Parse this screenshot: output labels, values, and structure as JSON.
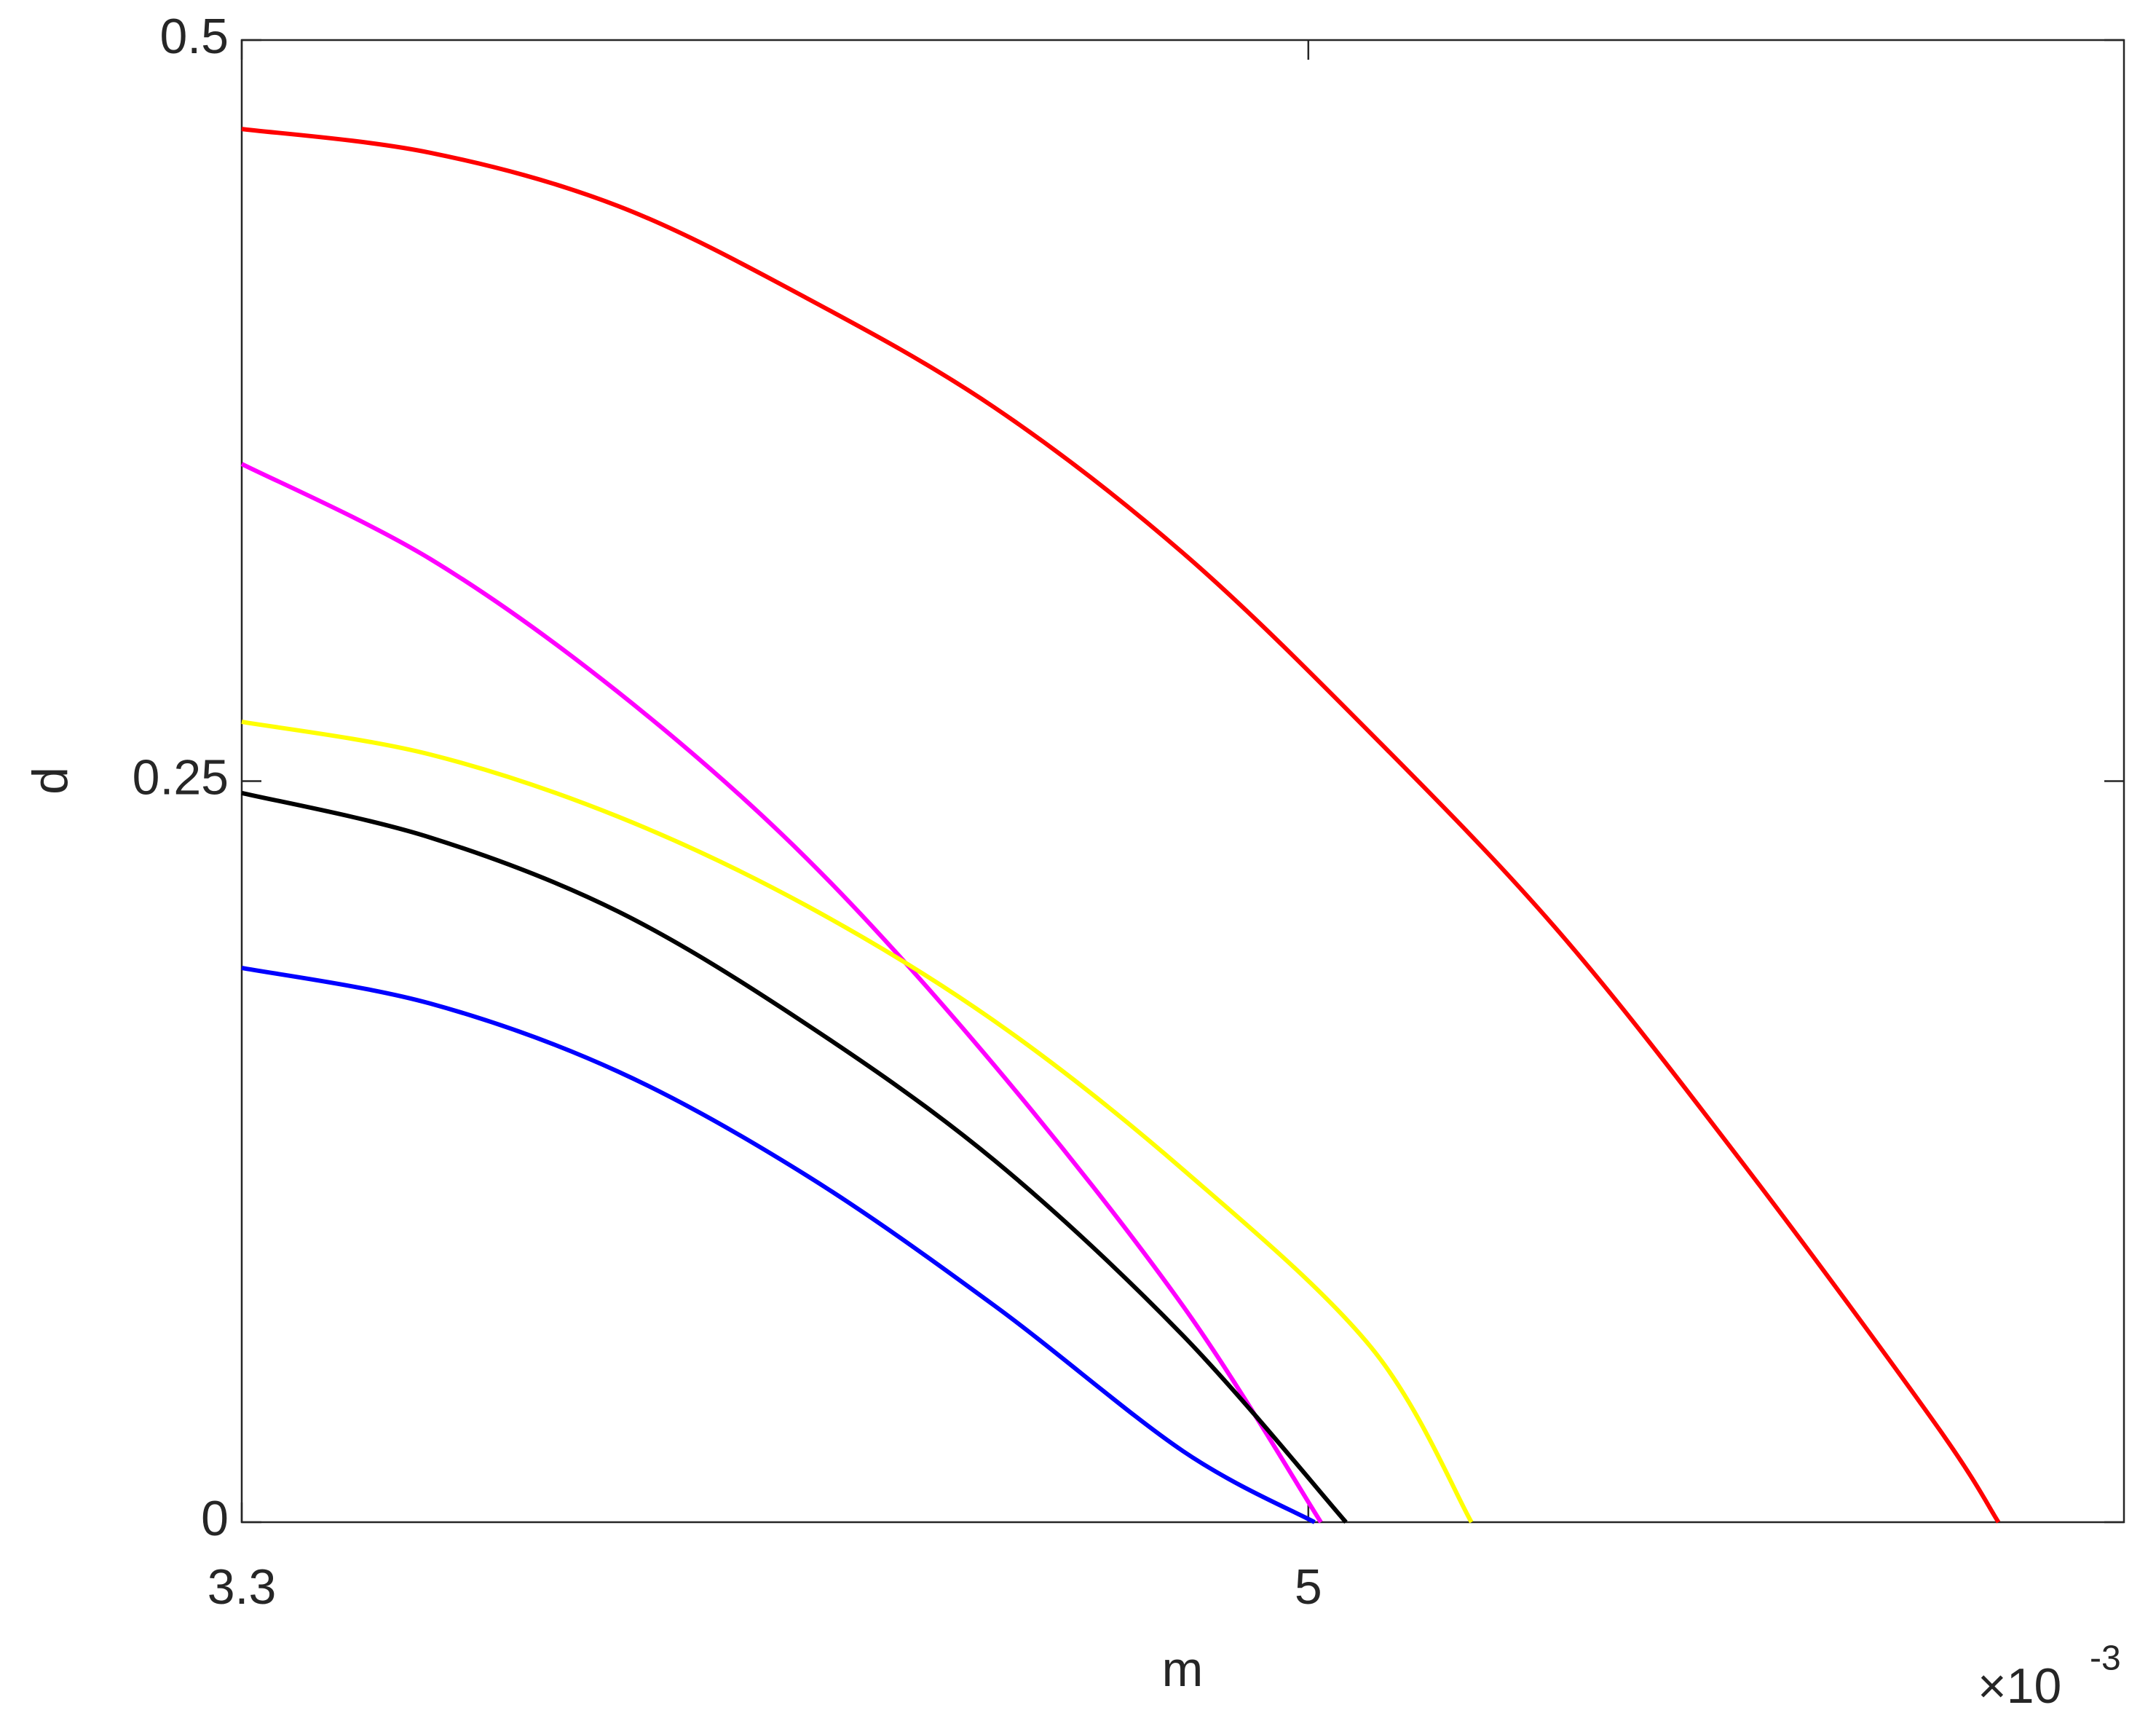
{
  "chart_data": {
    "type": "line",
    "xlabel": "m",
    "ylabel": "d",
    "x_multiplier": "×10",
    "x_exponent": "-3",
    "xlim": [
      3.3,
      6.3
    ],
    "xticks": [
      3.3,
      5
    ],
    "ylim": [
      0,
      0.5
    ],
    "yticks": [
      0,
      0.25,
      0.5
    ],
    "series": [
      {
        "color": "#ff0000",
        "x": [
          3.3,
          3.6,
          3.9,
          4.2,
          4.5,
          4.8,
          5.1,
          5.4,
          5.7,
          6.0,
          6.1
        ],
        "values": [
          0.47,
          0.462,
          0.444,
          0.413,
          0.376,
          0.327,
          0.266,
          0.199,
          0.119,
          0.033,
          0
        ]
      },
      {
        "color": "#ff00ff",
        "x": [
          3.3,
          3.6,
          3.9,
          4.2,
          4.5,
          4.8,
          5.02
        ],
        "values": [
          0.357,
          0.325,
          0.28,
          0.224,
          0.154,
          0.073,
          0
        ]
      },
      {
        "color": "#ffff00",
        "x": [
          3.3,
          3.6,
          3.9,
          4.2,
          4.5,
          4.8,
          5.1,
          5.26
        ],
        "values": [
          0.27,
          0.259,
          0.238,
          0.208,
          0.169,
          0.119,
          0.059,
          0
        ]
      },
      {
        "color": "#000000",
        "x": [
          3.3,
          3.6,
          3.9,
          4.2,
          4.5,
          4.8,
          5.06
        ],
        "values": [
          0.246,
          0.231,
          0.206,
          0.168,
          0.122,
          0.063,
          0
        ]
      },
      {
        "color": "#0000ff",
        "x": [
          3.3,
          3.6,
          3.9,
          4.2,
          4.5,
          4.8,
          5.01
        ],
        "values": [
          0.187,
          0.175,
          0.152,
          0.117,
          0.073,
          0.024,
          0
        ]
      }
    ]
  }
}
